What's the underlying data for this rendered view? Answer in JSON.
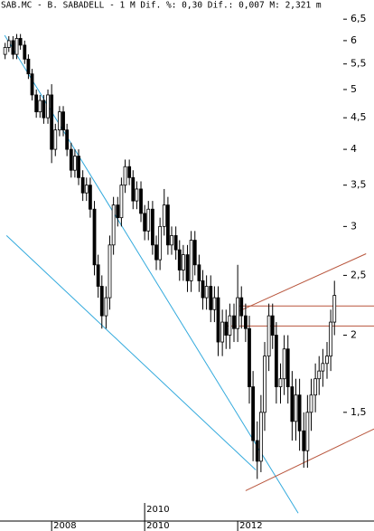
{
  "chart_data": {
    "type": "candlestick",
    "title": "SAB.MC - B. SABADELL -  1 M Dif. %: 0,30 Dif.: 0,007 M: 2,321 m",
    "x": [
      2007.0,
      2007.08,
      2007.17,
      2007.25,
      2007.33,
      2007.42,
      2007.5,
      2007.58,
      2007.67,
      2007.75,
      2007.83,
      2007.92,
      2008.0,
      2008.08,
      2008.17,
      2008.25,
      2008.33,
      2008.42,
      2008.5,
      2008.58,
      2008.67,
      2008.75,
      2008.83,
      2008.92,
      2009.0,
      2009.08,
      2009.17,
      2009.25,
      2009.33,
      2009.42,
      2009.5,
      2009.58,
      2009.67,
      2009.75,
      2009.83,
      2009.92,
      2010.0,
      2010.08,
      2010.17,
      2010.25,
      2010.33,
      2010.42,
      2010.5,
      2010.58,
      2010.67,
      2010.75,
      2010.83,
      2010.92,
      2011.0,
      2011.08,
      2011.17,
      2011.25,
      2011.33,
      2011.42,
      2011.5,
      2011.58,
      2011.67,
      2011.75,
      2011.83,
      2011.92,
      2012.0,
      2012.08,
      2012.17,
      2012.25,
      2012.33,
      2012.42,
      2012.5,
      2012.58,
      2012.67,
      2012.75,
      2012.83,
      2012.92,
      2013.0,
      2013.08,
      2013.17,
      2013.25,
      2013.33,
      2013.42,
      2013.5,
      2013.58,
      2013.67,
      2013.75,
      2013.83,
      2013.92,
      2014.0,
      2014.08
    ],
    "open": [
      5.7,
      5.85,
      6.0,
      5.7,
      6.05,
      5.9,
      5.6,
      5.3,
      4.9,
      4.6,
      4.8,
      4.5,
      4.9,
      4.0,
      4.3,
      4.6,
      4.3,
      4.0,
      3.7,
      3.9,
      3.6,
      3.4,
      3.5,
      3.2,
      2.6,
      2.4,
      2.15,
      2.3,
      2.8,
      3.25,
      3.1,
      3.5,
      3.75,
      3.6,
      3.3,
      3.45,
      3.15,
      2.95,
      3.2,
      2.8,
      2.65,
      3.0,
      3.25,
      2.8,
      2.9,
      2.75,
      2.55,
      2.7,
      2.45,
      2.85,
      2.6,
      2.45,
      2.3,
      2.4,
      2.2,
      2.3,
      1.95,
      2.1,
      2.0,
      2.15,
      2.05,
      2.3,
      2.15,
      2.05,
      1.65,
      1.35,
      1.25,
      1.5,
      1.85,
      2.15,
      2.0,
      1.65,
      1.7,
      1.9,
      1.65,
      1.45,
      1.6,
      1.4,
      1.3,
      1.5,
      1.6,
      1.7,
      1.75,
      1.8,
      1.85,
      2.1
    ],
    "high": [
      5.95,
      6.1,
      6.1,
      6.15,
      6.15,
      6.0,
      5.7,
      5.4,
      5.0,
      4.9,
      4.9,
      5.0,
      5.1,
      4.4,
      4.7,
      4.7,
      4.4,
      4.1,
      4.0,
      4.0,
      3.7,
      3.6,
      3.6,
      3.3,
      2.7,
      2.5,
      2.4,
      2.9,
      3.35,
      3.35,
      3.6,
      3.85,
      3.85,
      3.7,
      3.55,
      3.55,
      3.25,
      3.3,
      3.3,
      2.9,
      3.1,
      3.45,
      3.35,
      3.0,
      3.0,
      2.85,
      2.8,
      2.8,
      2.95,
      2.95,
      2.7,
      2.55,
      2.5,
      2.5,
      2.4,
      2.4,
      2.2,
      2.2,
      2.25,
      2.25,
      2.6,
      2.4,
      2.25,
      2.15,
      1.75,
      1.45,
      1.6,
      1.95,
      2.25,
      2.25,
      2.1,
      1.8,
      2.0,
      2.0,
      1.75,
      1.7,
      1.7,
      1.5,
      1.6,
      1.7,
      1.8,
      1.85,
      1.9,
      1.95,
      2.2,
      2.45
    ],
    "low": [
      5.6,
      5.75,
      5.6,
      5.6,
      5.8,
      5.5,
      5.2,
      4.8,
      4.5,
      4.5,
      4.4,
      4.4,
      3.8,
      3.9,
      4.2,
      4.2,
      3.9,
      3.6,
      3.6,
      3.5,
      3.3,
      3.3,
      3.1,
      2.5,
      2.3,
      2.05,
      2.05,
      2.2,
      2.7,
      3.0,
      3.0,
      3.4,
      3.5,
      3.2,
      3.2,
      3.05,
      2.85,
      2.85,
      2.7,
      2.55,
      2.55,
      2.9,
      2.7,
      2.7,
      2.65,
      2.45,
      2.45,
      2.35,
      2.35,
      2.5,
      2.35,
      2.2,
      2.2,
      2.1,
      2.1,
      1.85,
      1.85,
      1.9,
      1.9,
      1.95,
      1.95,
      2.05,
      1.95,
      1.55,
      1.25,
      1.17,
      1.2,
      1.4,
      1.75,
      1.9,
      1.55,
      1.55,
      1.6,
      1.55,
      1.35,
      1.35,
      1.3,
      1.22,
      1.22,
      1.4,
      1.5,
      1.6,
      1.65,
      1.7,
      1.75,
      2.0
    ],
    "close": [
      5.85,
      6.0,
      5.7,
      6.05,
      5.9,
      5.6,
      5.3,
      4.9,
      4.6,
      4.8,
      4.5,
      4.9,
      4.0,
      4.3,
      4.6,
      4.3,
      4.0,
      3.7,
      3.9,
      3.6,
      3.4,
      3.5,
      3.2,
      2.6,
      2.4,
      2.15,
      2.3,
      2.8,
      3.25,
      3.1,
      3.5,
      3.75,
      3.6,
      3.3,
      3.45,
      3.15,
      2.95,
      3.2,
      2.8,
      2.65,
      3.0,
      3.25,
      2.8,
      2.9,
      2.75,
      2.55,
      2.7,
      2.45,
      2.85,
      2.6,
      2.45,
      2.3,
      2.4,
      2.2,
      2.3,
      1.95,
      2.1,
      2.0,
      2.15,
      2.05,
      2.3,
      2.15,
      2.05,
      1.65,
      1.35,
      1.25,
      1.5,
      1.85,
      2.15,
      2.0,
      1.65,
      1.7,
      1.9,
      1.65,
      1.45,
      1.6,
      1.4,
      1.3,
      1.5,
      1.6,
      1.7,
      1.75,
      1.8,
      1.85,
      2.1,
      2.32
    ],
    "color": "#000000",
    "xlim": [
      2006.89,
      2014.93
    ],
    "xticks": [
      2008,
      2010,
      2012
    ],
    "ylim": [
      1.0,
      6.75
    ],
    "log_scale": true,
    "yticks": [
      {
        "value": 1.5,
        "label": "1,5"
      },
      2,
      {
        "value": 2.5,
        "label": "2,5"
      },
      3,
      {
        "value": 3.5,
        "label": "3,5"
      },
      4,
      {
        "value": 4.5,
        "label": "4,5"
      },
      5,
      {
        "value": 5.5,
        "label": "5,5"
      },
      6,
      {
        "value": 6.5,
        "label": "6,5"
      }
    ],
    "lines": [
      {
        "color": "#33aadd",
        "x": [
          2006.99,
          2013.3
        ],
        "y": [
          6.12,
          1.03
        ]
      },
      {
        "color": "#33aadd",
        "x": [
          2007.03,
          2012.39
        ],
        "y": [
          2.9,
          1.21
        ]
      },
      {
        "color": "#b8553c",
        "x": [
          2012.0,
          2014.93
        ],
        "y": [
          2.23,
          2.23
        ]
      },
      {
        "color": "#b8553c",
        "x": [
          2011.75,
          2014.93
        ],
        "y": [
          2.07,
          2.07
        ]
      },
      {
        "color": "#b8553c",
        "x": [
          2012.04,
          2014.76
        ],
        "y": [
          2.19,
          2.71
        ]
      },
      {
        "color": "#b8553c",
        "x": [
          2012.17,
          2014.93
        ],
        "y": [
          1.12,
          1.41
        ]
      }
    ],
    "annotations": [
      {
        "text": "2010",
        "x": 2010
      }
    ]
  }
}
